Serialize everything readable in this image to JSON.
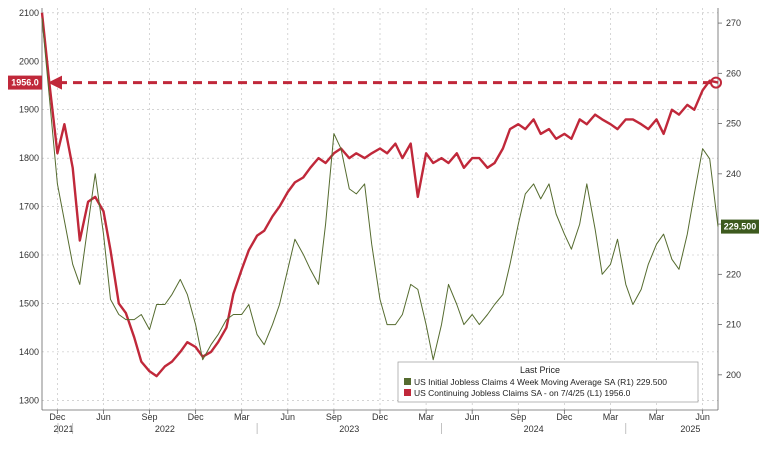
{
  "chart_data": {
    "type": "line",
    "title": "",
    "left_axis": {
      "ticks": [
        1300,
        1400,
        1500,
        1600,
        1700,
        1800,
        1900,
        2000,
        2100
      ],
      "range": [
        1280,
        2110
      ]
    },
    "right_axis": {
      "ticks": [
        200,
        210,
        220,
        230,
        240,
        250,
        260,
        270
      ],
      "range": [
        193,
        273
      ]
    },
    "x_axis": {
      "month_labels": [
        "Dec",
        "Mar",
        "Jun",
        "Sep",
        "Dec",
        "Mar",
        "Jun",
        "Sep",
        "Dec",
        "Mar",
        "Jun",
        "Sep",
        "Dec",
        "Mar",
        "Jun"
      ],
      "year_labels": [
        "2021",
        "2022",
        "2023",
        "2024",
        "2025"
      ],
      "range": [
        "2021-11",
        "2025-07"
      ]
    },
    "grid": true,
    "legend": {
      "title": "Last Price",
      "placement": "bottom-right",
      "items": [
        {
          "label": "US Initial Jobless Claims 4 Week Moving Average SA  (R1) 229.500",
          "color": "#556b2f"
        },
        {
          "label": "US Continuing Jobless Claims SA  -  on 7/4/25  (L1)           1956.0",
          "color": "#c0283a"
        }
      ]
    },
    "last_value_labels": {
      "left": "1956.0",
      "right": "229.500"
    },
    "colors": {
      "continuing": "#c0283a",
      "initial": "#556b2f",
      "grid": "#bbbbbb"
    },
    "annotation": "dashed arrow marking current continuing claims level equal to level at start of 2021 series",
    "series": [
      {
        "name": "US Continuing Jobless Claims SA",
        "axis": "left",
        "color": "#c0283a",
        "values": [
          [
            "2021-11",
            2100
          ],
          [
            "2021-11-15",
            1960
          ],
          [
            "2021-12",
            1810
          ],
          [
            "2021-12-15",
            1870
          ],
          [
            "2022-01",
            1780
          ],
          [
            "2022-01-15",
            1630
          ],
          [
            "2022-02",
            1710
          ],
          [
            "2022-02-15",
            1720
          ],
          [
            "2022-03",
            1690
          ],
          [
            "2022-03-15",
            1610
          ],
          [
            "2022-04",
            1500
          ],
          [
            "2022-04-15",
            1480
          ],
          [
            "2022-05",
            1430
          ],
          [
            "2022-05-15",
            1380
          ],
          [
            "2022-06",
            1360
          ],
          [
            "2022-06-15",
            1350
          ],
          [
            "2022-07",
            1370
          ],
          [
            "2022-07-15",
            1380
          ],
          [
            "2022-08",
            1400
          ],
          [
            "2022-08-15",
            1420
          ],
          [
            "2022-09",
            1410
          ],
          [
            "2022-09-15",
            1390
          ],
          [
            "2022-10",
            1400
          ],
          [
            "2022-10-15",
            1420
          ],
          [
            "2022-11",
            1450
          ],
          [
            "2022-11-15",
            1520
          ],
          [
            "2022-12",
            1570
          ],
          [
            "2022-12-15",
            1610
          ],
          [
            "2023-01",
            1640
          ],
          [
            "2023-01-15",
            1650
          ],
          [
            "2023-02",
            1680
          ],
          [
            "2023-02-15",
            1700
          ],
          [
            "2023-03",
            1730
          ],
          [
            "2023-03-15",
            1750
          ],
          [
            "2023-04",
            1760
          ],
          [
            "2023-04-15",
            1780
          ],
          [
            "2023-05",
            1800
          ],
          [
            "2023-05-15",
            1790
          ],
          [
            "2023-06",
            1810
          ],
          [
            "2023-06-15",
            1820
          ],
          [
            "2023-07",
            1800
          ],
          [
            "2023-07-15",
            1810
          ],
          [
            "2023-08",
            1800
          ],
          [
            "2023-08-15",
            1810
          ],
          [
            "2023-09",
            1820
          ],
          [
            "2023-09-15",
            1810
          ],
          [
            "2023-10",
            1830
          ],
          [
            "2023-10-15",
            1800
          ],
          [
            "2023-11",
            1830
          ],
          [
            "2023-11-15",
            1720
          ],
          [
            "2023-12",
            1810
          ],
          [
            "2023-12-15",
            1790
          ],
          [
            "2024-01",
            1800
          ],
          [
            "2024-01-15",
            1790
          ],
          [
            "2024-02",
            1810
          ],
          [
            "2024-02-15",
            1780
          ],
          [
            "2024-03",
            1800
          ],
          [
            "2024-03-15",
            1800
          ],
          [
            "2024-04",
            1780
          ],
          [
            "2024-04-15",
            1790
          ],
          [
            "2024-05",
            1820
          ],
          [
            "2024-05-15",
            1860
          ],
          [
            "2024-06",
            1870
          ],
          [
            "2024-06-15",
            1860
          ],
          [
            "2024-07",
            1880
          ],
          [
            "2024-07-15",
            1850
          ],
          [
            "2024-08",
            1860
          ],
          [
            "2024-08-15",
            1840
          ],
          [
            "2024-09",
            1850
          ],
          [
            "2024-09-15",
            1840
          ],
          [
            "2024-10",
            1880
          ],
          [
            "2024-10-15",
            1870
          ],
          [
            "2024-11",
            1890
          ],
          [
            "2024-11-15",
            1880
          ],
          [
            "2024-12",
            1870
          ],
          [
            "2024-12-15",
            1860
          ],
          [
            "2025-01",
            1880
          ],
          [
            "2025-01-15",
            1880
          ],
          [
            "2025-02",
            1870
          ],
          [
            "2025-02-15",
            1860
          ],
          [
            "2025-03",
            1880
          ],
          [
            "2025-03-15",
            1850
          ],
          [
            "2025-04",
            1900
          ],
          [
            "2025-04-15",
            1890
          ],
          [
            "2025-05",
            1910
          ],
          [
            "2025-05-15",
            1900
          ],
          [
            "2025-06",
            1940
          ],
          [
            "2025-06-15",
            1960
          ],
          [
            "2025-07",
            1956
          ]
        ]
      },
      {
        "name": "US Initial Jobless Claims 4 Week Moving Average SA",
        "axis": "right",
        "color": "#556b2f",
        "values": [
          [
            "2021-11",
            271
          ],
          [
            "2021-12",
            238
          ],
          [
            "2022-01",
            222
          ],
          [
            "2022-01-15",
            218
          ],
          [
            "2022-02",
            230
          ],
          [
            "2022-02-15",
            240
          ],
          [
            "2022-03",
            228
          ],
          [
            "2022-03-15",
            215
          ],
          [
            "2022-04",
            212
          ],
          [
            "2022-04-15",
            211
          ],
          [
            "2022-05",
            211
          ],
          [
            "2022-05-15",
            212
          ],
          [
            "2022-06",
            209
          ],
          [
            "2022-06-15",
            214
          ],
          [
            "2022-07",
            214
          ],
          [
            "2022-07-15",
            216
          ],
          [
            "2022-08",
            219
          ],
          [
            "2022-08-15",
            216
          ],
          [
            "2022-09",
            210
          ],
          [
            "2022-09-15",
            203
          ],
          [
            "2022-10",
            206
          ],
          [
            "2022-10-15",
            208
          ],
          [
            "2022-11",
            211
          ],
          [
            "2022-11-15",
            212
          ],
          [
            "2022-12",
            212
          ],
          [
            "2022-12-15",
            214
          ],
          [
            "2023-01",
            208
          ],
          [
            "2023-01-15",
            206
          ],
          [
            "2023-02",
            210
          ],
          [
            "2023-02-15",
            214
          ],
          [
            "2023-03",
            221
          ],
          [
            "2023-03-15",
            227
          ],
          [
            "2023-04",
            224
          ],
          [
            "2023-04-15",
            221
          ],
          [
            "2023-05",
            218
          ],
          [
            "2023-05-15",
            230
          ],
          [
            "2023-06",
            248
          ],
          [
            "2023-06-15",
            245
          ],
          [
            "2023-07",
            237
          ],
          [
            "2023-07-15",
            236
          ],
          [
            "2023-08",
            238
          ],
          [
            "2023-08-15",
            226
          ],
          [
            "2023-09",
            215
          ],
          [
            "2023-09-15",
            210
          ],
          [
            "2023-10",
            210
          ],
          [
            "2023-10-15",
            212
          ],
          [
            "2023-11",
            218
          ],
          [
            "2023-11-15",
            217
          ],
          [
            "2023-12",
            210
          ],
          [
            "2023-12-15",
            203
          ],
          [
            "2024-01",
            210
          ],
          [
            "2024-01-15",
            218
          ],
          [
            "2024-02",
            214
          ],
          [
            "2024-02-15",
            210
          ],
          [
            "2024-03",
            212
          ],
          [
            "2024-03-15",
            210
          ],
          [
            "2024-04",
            212
          ],
          [
            "2024-04-15",
            214
          ],
          [
            "2024-05",
            216
          ],
          [
            "2024-05-15",
            222
          ],
          [
            "2024-06",
            230
          ],
          [
            "2024-06-15",
            236
          ],
          [
            "2024-07",
            238
          ],
          [
            "2024-07-15",
            235
          ],
          [
            "2024-08",
            238
          ],
          [
            "2024-08-15",
            232
          ],
          [
            "2024-09",
            228
          ],
          [
            "2024-09-15",
            225
          ],
          [
            "2024-10",
            230
          ],
          [
            "2024-10-15",
            238
          ],
          [
            "2024-11",
            229
          ],
          [
            "2024-11-15",
            220
          ],
          [
            "2024-12",
            222
          ],
          [
            "2024-12-15",
            227
          ],
          [
            "2025-01",
            218
          ],
          [
            "2025-01-15",
            214
          ],
          [
            "2025-02",
            217
          ],
          [
            "2025-02-15",
            222
          ],
          [
            "2025-03",
            226
          ],
          [
            "2025-03-15",
            228
          ],
          [
            "2025-04",
            223
          ],
          [
            "2025-04-15",
            221
          ],
          [
            "2025-05",
            228
          ],
          [
            "2025-05-15",
            236
          ],
          [
            "2025-06",
            245
          ],
          [
            "2025-06-15",
            243
          ],
          [
            "2025-07",
            229.5
          ]
        ]
      }
    ]
  }
}
